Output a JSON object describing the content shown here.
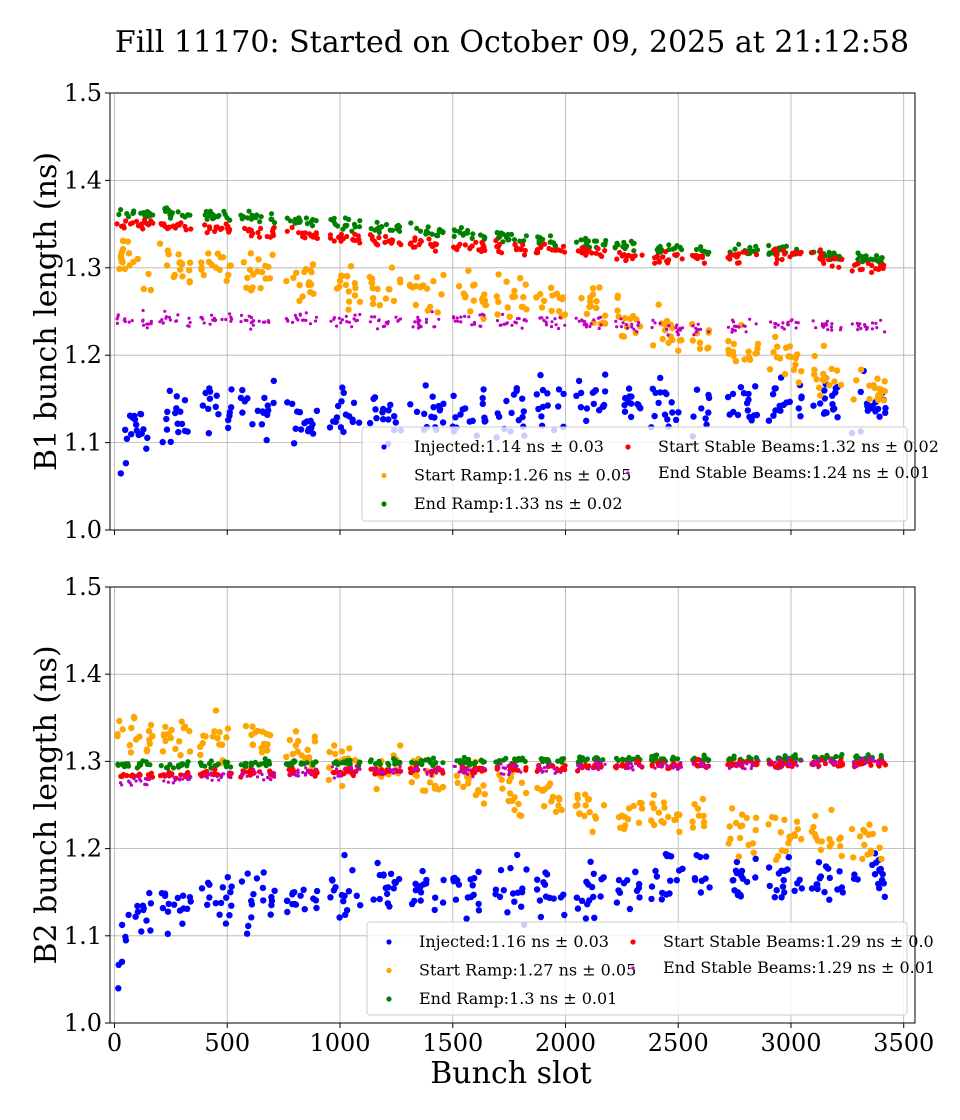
{
  "chart_data": {
    "title": "Fill 11170: Started on October 09, 2025 at 21:12:58",
    "filled_slot_ranges": [
      [
        10,
        170
      ],
      [
        200,
        340
      ],
      [
        380,
        520
      ],
      [
        560,
        710
      ],
      [
        760,
        900
      ],
      [
        950,
        1090
      ],
      [
        1130,
        1270
      ],
      [
        1310,
        1460
      ],
      [
        1500,
        1650
      ],
      [
        1690,
        1830
      ],
      [
        1870,
        2000
      ],
      [
        2040,
        2180
      ],
      [
        2220,
        2340
      ],
      [
        2380,
        2520
      ],
      [
        2560,
        2640
      ],
      [
        2720,
        2860
      ],
      [
        2900,
        3050
      ],
      [
        3090,
        3230
      ],
      [
        3270,
        3420
      ]
    ],
    "panels": [
      {
        "type": "scatter",
        "ylabel": "B1 bunch length (ns)",
        "xlabel": "",
        "xlim": [
          -20,
          3550
        ],
        "ylim": [
          1.0,
          1.5
        ],
        "xticks": [
          "0",
          "500",
          "1000",
          "1500",
          "2000",
          "2500",
          "3000",
          "3500"
        ],
        "show_xtick_labels": false,
        "yticks": [
          "1.0",
          "1.1",
          "1.2",
          "1.3",
          "1.4",
          "1.5"
        ],
        "grid": true,
        "legend_position": "lower-right",
        "series": [
          {
            "name": "Injected:1.14 ns ± 0.03",
            "color": "#0000ff",
            "mean_at_slot": {
              "x": [
                0,
                500,
                1000,
                1500,
                2000,
                2500,
                3000,
                3400
              ],
              "y": [
                1.11,
                1.14,
                1.13,
                1.13,
                1.15,
                1.14,
                1.15,
                1.14
              ]
            },
            "spread": 0.03
          },
          {
            "name": "Start Ramp:1.26 ns ± 0.05",
            "color": "#ffa500",
            "mean_at_slot": {
              "x": [
                0,
                500,
                1000,
                1500,
                2000,
                2500,
                3000,
                3400
              ],
              "y": [
                1.31,
                1.3,
                1.28,
                1.27,
                1.26,
                1.22,
                1.19,
                1.16
              ]
            },
            "spread": 0.025
          },
          {
            "name": "End Ramp:1.33 ns ± 0.02",
            "color": "#008000",
            "mean_at_slot": {
              "x": [
                0,
                500,
                1000,
                1500,
                2000,
                2500,
                3000,
                3400
              ],
              "y": [
                1.365,
                1.36,
                1.35,
                1.34,
                1.33,
                1.32,
                1.32,
                1.31
              ]
            },
            "spread": 0.006
          },
          {
            "name": "Start Stable Beams:1.32 ns ± 0.02",
            "color": "#ff0000",
            "mean_at_slot": {
              "x": [
                0,
                500,
                1000,
                1500,
                2000,
                2500,
                3000,
                3400
              ],
              "y": [
                1.35,
                1.345,
                1.335,
                1.325,
                1.32,
                1.31,
                1.315,
                1.3
              ]
            },
            "spread": 0.007
          },
          {
            "name": "End Stable Beams:1.24 ns ± 0.01",
            "color": "#bf00bf",
            "mean_at_slot": {
              "x": [
                0,
                500,
                1000,
                1500,
                2000,
                2500,
                3000,
                3400
              ],
              "y": [
                1.24,
                1.24,
                1.24,
                1.24,
                1.24,
                1.23,
                1.235,
                1.23
              ]
            },
            "spread": 0.008
          }
        ]
      },
      {
        "type": "scatter",
        "ylabel": "B2 bunch length (ns)",
        "xlabel": "Bunch slot",
        "xlim": [
          -20,
          3550
        ],
        "ylim": [
          1.0,
          1.5
        ],
        "xticks": [
          "0",
          "500",
          "1000",
          "1500",
          "2000",
          "2500",
          "3000",
          "3500"
        ],
        "show_xtick_labels": true,
        "yticks": [
          "1.0",
          "1.1",
          "1.2",
          "1.3",
          "1.4",
          "1.5"
        ],
        "grid": true,
        "legend_position": "lower-right",
        "series": [
          {
            "name": "Injected:1.16 ns ± 0.03",
            "color": "#0000ff",
            "mean_at_slot": {
              "x": [
                0,
                500,
                1000,
                1500,
                2000,
                2500,
                3000,
                3400
              ],
              "y": [
                1.12,
                1.14,
                1.15,
                1.15,
                1.15,
                1.17,
                1.16,
                1.17
              ]
            },
            "spread": 0.03
          },
          {
            "name": "Start Ramp:1.27 ns ± 0.05",
            "color": "#ffa500",
            "mean_at_slot": {
              "x": [
                0,
                500,
                1000,
                1500,
                2000,
                2500,
                3000,
                3400
              ],
              "y": [
                1.33,
                1.33,
                1.3,
                1.28,
                1.25,
                1.24,
                1.21,
                1.21
              ]
            },
            "spread": 0.025
          },
          {
            "name": "End Ramp:1.3 ns ± 0.01",
            "color": "#008000",
            "mean_at_slot": {
              "x": [
                0,
                500,
                1000,
                1500,
                2000,
                2500,
                3000,
                3400
              ],
              "y": [
                1.295,
                1.297,
                1.298,
                1.3,
                1.302,
                1.303,
                1.303,
                1.305
              ]
            },
            "spread": 0.004
          },
          {
            "name": "Start Stable Beams:1.29 ns ± 0.0",
            "color": "#ff0000",
            "mean_at_slot": {
              "x": [
                0,
                500,
                1000,
                1500,
                2000,
                2500,
                3000,
                3400
              ],
              "y": [
                1.283,
                1.286,
                1.288,
                1.29,
                1.293,
                1.296,
                1.297,
                1.298
              ]
            },
            "spread": 0.004
          },
          {
            "name": "End Stable Beams:1.29 ns ± 0.01",
            "color": "#bf00bf",
            "mean_at_slot": {
              "x": [
                0,
                500,
                1000,
                1500,
                2000,
                2500,
                3000,
                3400
              ],
              "y": [
                1.275,
                1.285,
                1.288,
                1.29,
                1.293,
                1.296,
                1.297,
                1.3
              ]
            },
            "spread": 0.006
          }
        ]
      }
    ]
  }
}
